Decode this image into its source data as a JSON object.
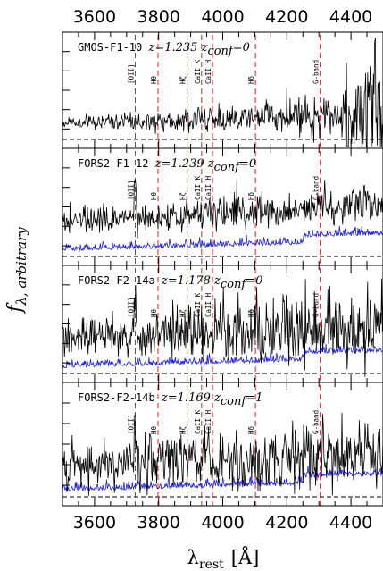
{
  "chart_data": {
    "type": "line",
    "x_axis": {
      "label_main": "λ",
      "label_sub": "rest",
      "label_unit": "[Å]",
      "xlim": [
        3500,
        4500
      ],
      "major_ticks": [
        3600,
        3800,
        4000,
        4200,
        4400
      ]
    },
    "y_axis": {
      "label_main": "f",
      "label_sub": "λ, arbitrary",
      "scale": "arbitrary"
    },
    "spectral_lines": [
      {
        "label": "[OII]",
        "wavelength": 3727
      },
      {
        "label": "Hθ",
        "wavelength": 3798
      },
      {
        "label": "Hζ",
        "wavelength": 3889
      },
      {
        "label": "CaII K",
        "wavelength": 3934
      },
      {
        "label": "CaII H",
        "wavelength": 3968
      },
      {
        "label": "Hδ",
        "wavelength": 4102
      },
      {
        "label": "G-band",
        "wavelength": 4304
      }
    ],
    "panels": [
      {
        "name": "GMOS-F1-10",
        "z_label": "z=",
        "z": "1.235",
        "zconf_label": "z",
        "zconf_sub": "conf",
        "zconf_value": "=0",
        "has_error": false
      },
      {
        "name": "FORS2-F1-12",
        "z_label": "z=",
        "z": "1.239",
        "zconf_label": "z",
        "zconf_sub": "conf",
        "zconf_value": "=0",
        "has_error": true
      },
      {
        "name": "FORS2-F2-14a",
        "z_label": "z=",
        "z": "1.178",
        "zconf_label": "z",
        "zconf_sub": "conf",
        "zconf_value": "=0",
        "has_error": true
      },
      {
        "name": "FORS2-F2-14b",
        "z_label": "z=",
        "z": "1.169",
        "zconf_label": "z",
        "zconf_sub": "conf",
        "zconf_value": "=1",
        "has_error": true
      }
    ],
    "series": [
      {
        "color": "#000000"
      },
      {
        "color": "#1f1fd6"
      }
    ],
    "colors": {
      "spectrum": "#000000",
      "error": "#1f1fd6",
      "line_markers": "#e02020",
      "zero_level": "#000000"
    }
  }
}
